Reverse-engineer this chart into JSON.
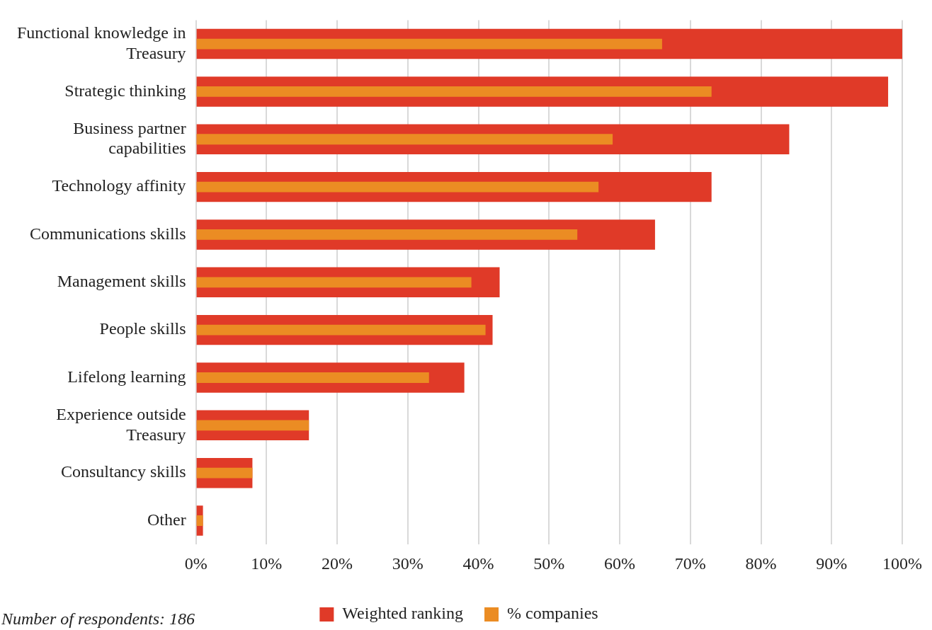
{
  "chart_data": {
    "type": "bar",
    "orientation": "horizontal",
    "categories": [
      "Functional knowledge in Treasury",
      "Strategic thinking",
      "Business partner capabilities",
      "Technology affinity",
      "Communications skills",
      "Management skills",
      "People skills",
      "Lifelong learning",
      "Experience outside Treasury",
      "Consultancy skills",
      "Other"
    ],
    "series": [
      {
        "name": "Weighted ranking",
        "color": "#e03a28",
        "values": [
          100,
          98,
          84,
          73,
          65,
          43,
          42,
          38,
          16,
          8,
          1
        ]
      },
      {
        "name": "% companies",
        "color": "#eb8c23",
        "values": [
          66,
          73,
          59,
          57,
          54,
          39,
          41,
          33,
          16,
          8,
          1
        ]
      }
    ],
    "xlim": [
      0,
      100
    ],
    "xticks": [
      {
        "value": 0,
        "label": "0%"
      },
      {
        "value": 10,
        "label": "10%"
      },
      {
        "value": 20,
        "label": "20%"
      },
      {
        "value": 30,
        "label": "30%"
      },
      {
        "value": 40,
        "label": "40%"
      },
      {
        "value": 50,
        "label": "50%"
      },
      {
        "value": 60,
        "label": "60%"
      },
      {
        "value": 70,
        "label": "70%"
      },
      {
        "value": 80,
        "label": "80%"
      },
      {
        "value": 90,
        "label": "90%"
      },
      {
        "value": 100,
        "label": "100%"
      }
    ],
    "grid": "x",
    "legend": "bottom",
    "annotations": [
      "Number of respondents: 186"
    ]
  }
}
